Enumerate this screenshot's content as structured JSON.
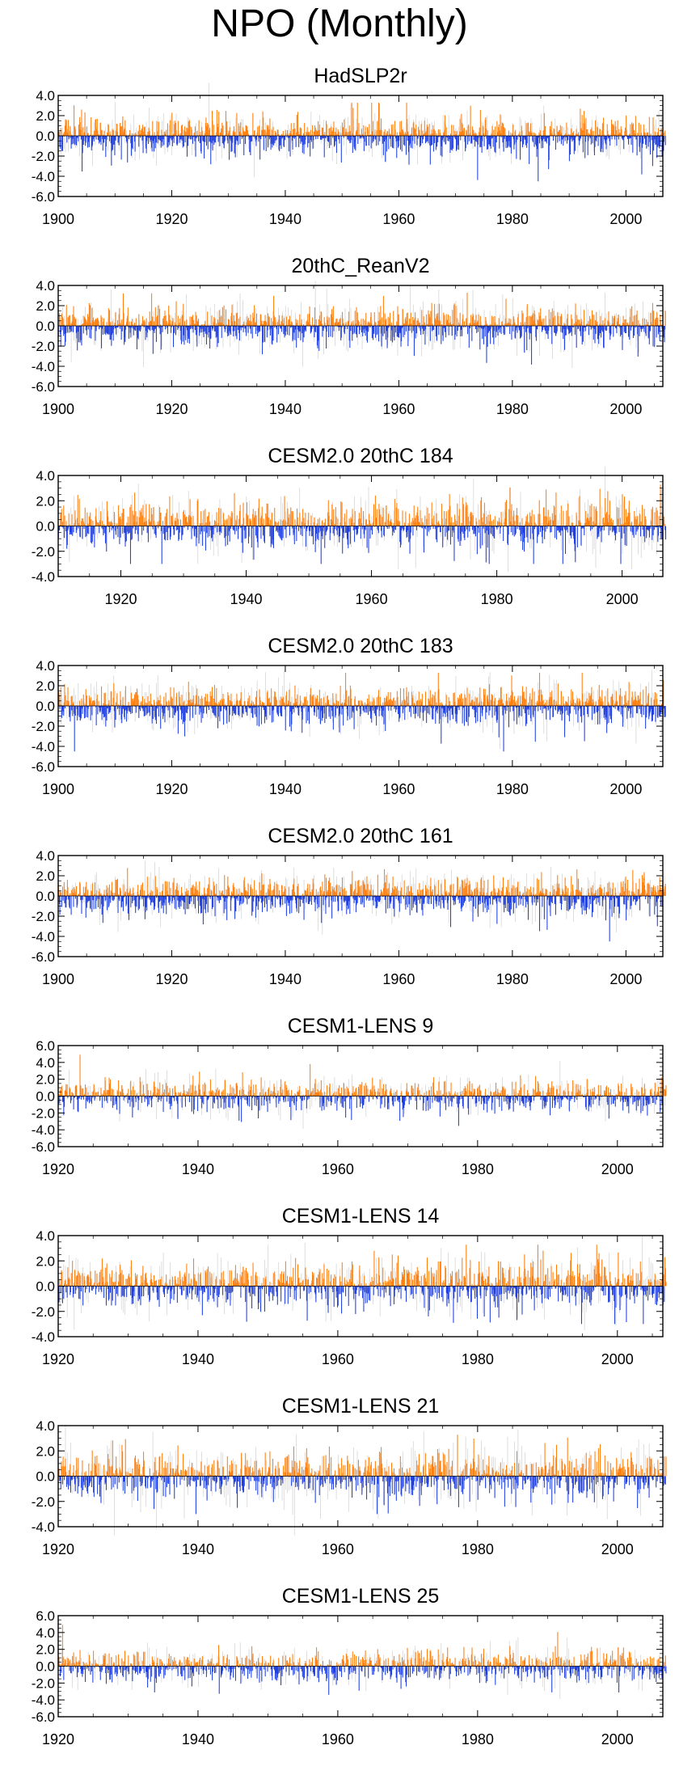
{
  "figure_title": "NPO (Monthly)",
  "colors": {
    "positive": "#ff7f0e",
    "negative": "#1f3fe0",
    "faint": "#c8c8c8"
  },
  "chart_data": [
    {
      "type": "bar",
      "title": "HadSLP2r",
      "xlim": [
        1900,
        2006
      ],
      "ylim": [
        -6,
        4
      ],
      "yticks": [
        4.0,
        2.0,
        0.0,
        -2.0,
        -4.0,
        -6.0
      ],
      "xticks": [
        1900,
        1920,
        1940,
        1960,
        1980,
        2000
      ],
      "pos_amp": 1.0,
      "neg_amp": 1.1,
      "seed": 11
    },
    {
      "type": "bar",
      "title": "20thC_ReanV2",
      "xlim": [
        1900,
        2006
      ],
      "ylim": [
        -6,
        4
      ],
      "yticks": [
        4.0,
        2.0,
        0.0,
        -2.0,
        -4.0,
        -6.0
      ],
      "xticks": [
        1900,
        1920,
        1940,
        1960,
        1980,
        2000
      ],
      "pos_amp": 1.0,
      "neg_amp": 1.1,
      "seed": 23
    },
    {
      "type": "bar",
      "title": "CESM2.0 20thC 184",
      "xlim": [
        1910,
        2006
      ],
      "ylim": [
        -4,
        4
      ],
      "yticks": [
        4.0,
        2.0,
        0.0,
        -2.0,
        -4.0
      ],
      "xticks": [
        1920,
        1940,
        1960,
        1980,
        2000
      ],
      "pos_amp": 1.1,
      "neg_amp": 1.0,
      "seed": 37
    },
    {
      "type": "bar",
      "title": "CESM2.0 20thC 183",
      "xlim": [
        1900,
        2006
      ],
      "ylim": [
        -6,
        4
      ],
      "yticks": [
        4.0,
        2.0,
        0.0,
        -2.0,
        -4.0,
        -6.0
      ],
      "xticks": [
        1900,
        1920,
        1940,
        1960,
        1980,
        2000
      ],
      "pos_amp": 1.0,
      "neg_amp": 1.1,
      "seed": 41
    },
    {
      "type": "bar",
      "title": "CESM2.0 20thC 161",
      "xlim": [
        1900,
        2006
      ],
      "ylim": [
        -6,
        4
      ],
      "yticks": [
        4.0,
        2.0,
        0.0,
        -2.0,
        -4.0,
        -6.0
      ],
      "xticks": [
        1900,
        1920,
        1940,
        1960,
        1980,
        2000
      ],
      "pos_amp": 1.0,
      "neg_amp": 1.1,
      "seed": 53
    },
    {
      "type": "bar",
      "title": "CESM1-LENS 9",
      "xlim": [
        1920,
        2006
      ],
      "ylim": [
        -6,
        6
      ],
      "yticks": [
        6.0,
        4.0,
        2.0,
        0.0,
        -2.0,
        -4.0,
        -6.0
      ],
      "xticks": [
        1920,
        1940,
        1960,
        1980,
        2000
      ],
      "pos_amp": 1.0,
      "neg_amp": 1.1,
      "seed": 67
    },
    {
      "type": "bar",
      "title": "CESM1-LENS 14",
      "xlim": [
        1920,
        2006
      ],
      "ylim": [
        -4,
        4
      ],
      "yticks": [
        4.0,
        2.0,
        0.0,
        -2.0,
        -4.0
      ],
      "xticks": [
        1920,
        1940,
        1960,
        1980,
        2000
      ],
      "pos_amp": 1.1,
      "neg_amp": 1.0,
      "seed": 79
    },
    {
      "type": "bar",
      "title": "CESM1-LENS 21",
      "xlim": [
        1920,
        2006
      ],
      "ylim": [
        -4,
        4
      ],
      "yticks": [
        4.0,
        2.0,
        0.0,
        -2.0,
        -4.0
      ],
      "xticks": [
        1920,
        1940,
        1960,
        1980,
        2000
      ],
      "pos_amp": 1.1,
      "neg_amp": 1.0,
      "seed": 83
    },
    {
      "type": "bar",
      "title": "CESM1-LENS 25",
      "xlim": [
        1920,
        2006
      ],
      "ylim": [
        -6,
        6
      ],
      "yticks": [
        6.0,
        4.0,
        2.0,
        0.0,
        -2.0,
        -4.0,
        -6.0
      ],
      "xticks": [
        1920,
        1940,
        1960,
        1980,
        2000
      ],
      "pos_amp": 1.0,
      "neg_amp": 1.1,
      "seed": 97
    }
  ]
}
